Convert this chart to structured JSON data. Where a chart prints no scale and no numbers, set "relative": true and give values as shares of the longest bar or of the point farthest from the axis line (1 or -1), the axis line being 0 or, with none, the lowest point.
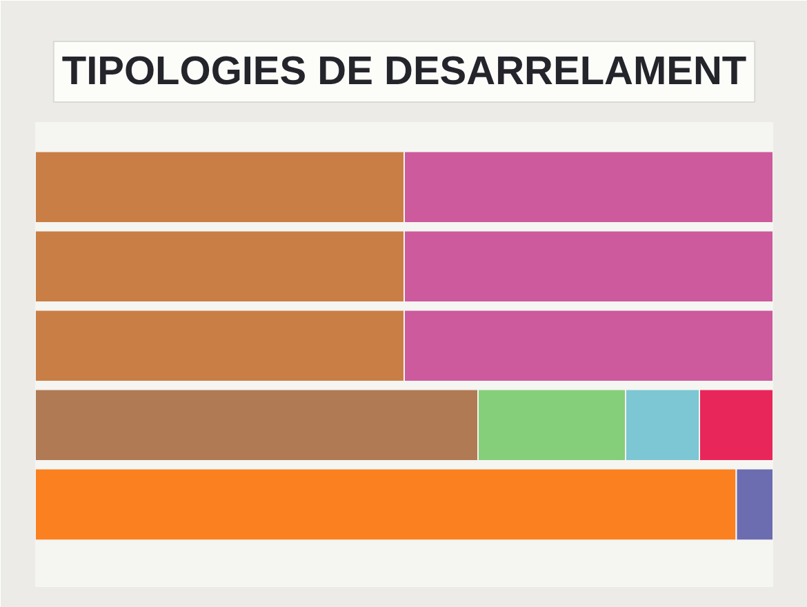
{
  "chart_data": {
    "type": "bar",
    "orientation": "horizontal",
    "stacked": true,
    "relative": true,
    "title": "TIPOLOGIES DE DESARRELAMENT",
    "categories": [
      null,
      null,
      null,
      null,
      null
    ],
    "series": [
      {
        "color": "#c97e45",
        "values": [
          0.5,
          0.5,
          0.5,
          null,
          null
        ]
      },
      {
        "color": "#cc5a9c",
        "values": [
          0.5,
          0.5,
          0.5,
          null,
          null
        ]
      },
      {
        "color": "#b07a55",
        "values": [
          null,
          null,
          null,
          0.6,
          null
        ]
      },
      {
        "color": "#86cf7a",
        "values": [
          null,
          null,
          null,
          0.2,
          null
        ]
      },
      {
        "color": "#7dc6d3",
        "values": [
          null,
          null,
          null,
          0.1,
          null
        ]
      },
      {
        "color": "#e8265a",
        "values": [
          null,
          null,
          null,
          0.1,
          null
        ]
      },
      {
        "color": "#fb8020",
        "values": [
          null,
          null,
          null,
          null,
          0.95
        ]
      },
      {
        "color": "#6c6cb0",
        "values": [
          null,
          null,
          null,
          null,
          0.05
        ]
      }
    ]
  }
}
